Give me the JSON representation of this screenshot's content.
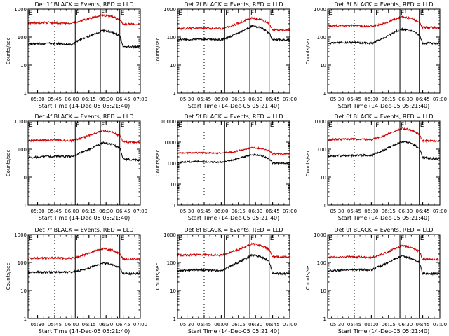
{
  "figure": {
    "x_axis_title": "Start Time (14-Dec-05 05:21:40)",
    "y_axis_title": "Counts/sec",
    "x_ticks": [
      "05:30",
      "05:45",
      "06:00",
      "06:15",
      "06:30",
      "06:45",
      "07:00"
    ],
    "y_ticks": [
      "1",
      "10",
      "100",
      "1000"
    ],
    "colors": {
      "events": "#000000",
      "lld": "#cc0000",
      "frame": "#000000"
    }
  },
  "chart_data": [
    {
      "type": "line",
      "title": "Det 1f BLACK = Events, RED = LLD",
      "y_scale": "log",
      "ylim": [
        1,
        1000
      ],
      "x_range": [
        "05:21:40",
        "07:00"
      ],
      "markers": [
        "F",
        "F",
        "E"
      ],
      "marker_times": [
        "06:03",
        "06:25",
        "06:42"
      ],
      "series": [
        {
          "color": "black",
          "x": [
            "05:22",
            "05:40",
            "06:00",
            "06:10",
            "06:20",
            "06:27",
            "06:35",
            "06:42",
            "06:45",
            "07:00"
          ],
          "y": [
            55,
            60,
            55,
            90,
            130,
            170,
            150,
            110,
            45,
            45
          ]
        },
        {
          "color": "red",
          "x": [
            "05:22",
            "05:40",
            "06:00",
            "06:10",
            "06:20",
            "06:27",
            "06:35",
            "06:42",
            "06:45",
            "07:00"
          ],
          "y": [
            320,
            330,
            310,
            400,
            520,
            600,
            550,
            420,
            290,
            290
          ]
        }
      ]
    },
    {
      "type": "line",
      "title": "Det 2f BLACK = Events, RED = LLD",
      "y_scale": "log",
      "ylim": [
        1,
        1000
      ],
      "x_range": [
        "05:21:40",
        "07:00"
      ],
      "markers": [
        "F",
        "F",
        "E"
      ],
      "marker_times": [
        "06:03",
        "06:25",
        "06:42"
      ],
      "series": [
        {
          "color": "black",
          "x": [
            "05:22",
            "05:40",
            "06:00",
            "06:10",
            "06:20",
            "06:27",
            "06:35",
            "06:42",
            "06:45",
            "07:00"
          ],
          "y": [
            80,
            85,
            80,
            110,
            180,
            250,
            220,
            140,
            80,
            80
          ]
        },
        {
          "color": "red",
          "x": [
            "05:22",
            "05:40",
            "06:00",
            "06:10",
            "06:20",
            "06:27",
            "06:35",
            "06:42",
            "06:45",
            "07:00"
          ],
          "y": [
            200,
            210,
            200,
            260,
            380,
            480,
            430,
            300,
            180,
            180
          ]
        }
      ]
    },
    {
      "type": "line",
      "title": "Det 3f BLACK = Events, RED = LLD",
      "y_scale": "log",
      "ylim": [
        1,
        1000
      ],
      "x_range": [
        "05:21:40",
        "07:00"
      ],
      "markers": [
        "F",
        "F",
        "E"
      ],
      "marker_times": [
        "06:03",
        "06:25",
        "06:42"
      ],
      "series": [
        {
          "color": "black",
          "x": [
            "05:22",
            "05:40",
            "06:00",
            "06:10",
            "06:20",
            "06:27",
            "06:35",
            "06:42",
            "06:45",
            "07:00"
          ],
          "y": [
            60,
            65,
            60,
            90,
            150,
            190,
            170,
            120,
            60,
            60
          ]
        },
        {
          "color": "red",
          "x": [
            "05:22",
            "05:40",
            "06:00",
            "06:10",
            "06:20",
            "06:27",
            "06:35",
            "06:42",
            "06:45",
            "07:00"
          ],
          "y": [
            250,
            260,
            240,
            300,
            430,
            520,
            470,
            340,
            220,
            220
          ]
        }
      ]
    },
    {
      "type": "line",
      "title": "Det 4f BLACK = Events, RED = LLD",
      "y_scale": "log",
      "ylim": [
        1,
        1000
      ],
      "x_range": [
        "05:21:40",
        "07:00"
      ],
      "markers": [
        "F",
        "F",
        "E"
      ],
      "marker_times": [
        "06:03",
        "06:25",
        "06:42"
      ],
      "series": [
        {
          "color": "black",
          "x": [
            "05:22",
            "05:40",
            "06:00",
            "06:10",
            "06:20",
            "06:27",
            "06:35",
            "06:42",
            "06:45",
            "07:00"
          ],
          "y": [
            50,
            55,
            55,
            80,
            120,
            170,
            150,
            110,
            45,
            40
          ]
        },
        {
          "color": "red",
          "x": [
            "05:22",
            "05:40",
            "06:00",
            "06:10",
            "06:20",
            "06:27",
            "06:35",
            "06:42",
            "06:45",
            "07:00"
          ],
          "y": [
            200,
            210,
            200,
            260,
            360,
            470,
            410,
            300,
            180,
            180
          ]
        }
      ]
    },
    {
      "type": "line",
      "title": "Det 5f BLACK = Events, RED = LLD",
      "y_scale": "log",
      "ylim": [
        1,
        10000
      ],
      "x_range": [
        "05:21:40",
        "07:00"
      ],
      "markers": [
        "F",
        "F",
        "E"
      ],
      "marker_times": [
        "06:03",
        "06:25",
        "06:42"
      ],
      "series": [
        {
          "color": "black",
          "x": [
            "05:22",
            "05:40",
            "06:00",
            "06:10",
            "06:20",
            "06:27",
            "06:35",
            "06:42",
            "06:45",
            "07:00"
          ],
          "y": [
            110,
            120,
            110,
            140,
            200,
            260,
            230,
            160,
            100,
            100
          ]
        },
        {
          "color": "red",
          "x": [
            "05:22",
            "05:40",
            "06:00",
            "06:10",
            "06:20",
            "06:27",
            "06:35",
            "06:42",
            "06:45",
            "07:00"
          ],
          "y": [
            300,
            310,
            300,
            340,
            450,
            550,
            500,
            380,
            280,
            280
          ]
        }
      ]
    },
    {
      "type": "line",
      "title": "Det 6f BLACK = Events, RED = LLD",
      "y_scale": "log",
      "ylim": [
        1,
        1000
      ],
      "x_range": [
        "05:21:40",
        "07:00"
      ],
      "markers": [
        "F",
        "F",
        "E"
      ],
      "marker_times": [
        "06:03",
        "06:25",
        "06:42"
      ],
      "series": [
        {
          "color": "black",
          "x": [
            "05:22",
            "05:40",
            "06:00",
            "06:10",
            "06:20",
            "06:27",
            "06:35",
            "06:42",
            "06:45",
            "07:00"
          ],
          "y": [
            55,
            60,
            60,
            90,
            140,
            190,
            160,
            110,
            50,
            45
          ]
        },
        {
          "color": "red",
          "x": [
            "05:22",
            "05:40",
            "06:00",
            "06:10",
            "06:20",
            "06:27",
            "06:35",
            "06:42",
            "06:45",
            "07:00"
          ],
          "y": [
            220,
            230,
            220,
            290,
            420,
            560,
            480,
            340,
            200,
            200
          ]
        }
      ]
    },
    {
      "type": "line",
      "title": "Det 7f BLACK = Events, RED = LLD",
      "y_scale": "log",
      "ylim": [
        1,
        1000
      ],
      "x_range": [
        "05:21:40",
        "07:00"
      ],
      "markers": [
        "F",
        "F",
        "E"
      ],
      "marker_times": [
        "06:03",
        "06:25",
        "06:42"
      ],
      "series": [
        {
          "color": "black",
          "x": [
            "05:22",
            "05:40",
            "06:00",
            "06:10",
            "06:20",
            "06:27",
            "06:35",
            "06:42",
            "06:45",
            "07:00"
          ],
          "y": [
            45,
            45,
            45,
            55,
            75,
            95,
            85,
            65,
            40,
            40
          ]
        },
        {
          "color": "red",
          "x": [
            "05:22",
            "05:40",
            "06:00",
            "06:10",
            "06:20",
            "06:27",
            "06:35",
            "06:42",
            "06:45",
            "07:00"
          ],
          "y": [
            140,
            145,
            140,
            180,
            250,
            310,
            280,
            200,
            130,
            130
          ]
        }
      ]
    },
    {
      "type": "line",
      "title": "Det 8f BLACK = Events, RED = LLD",
      "y_scale": "log",
      "ylim": [
        1,
        1000
      ],
      "x_range": [
        "05:21:40",
        "07:00"
      ],
      "markers": [
        "F",
        "F",
        "E"
      ],
      "marker_times": [
        "06:03",
        "06:25",
        "06:42"
      ],
      "series": [
        {
          "color": "black",
          "x": [
            "05:22",
            "05:40",
            "06:00",
            "06:10",
            "06:20",
            "06:27",
            "06:35",
            "06:42",
            "06:45",
            "07:00"
          ],
          "y": [
            50,
            55,
            50,
            80,
            130,
            180,
            160,
            110,
            40,
            40
          ]
        },
        {
          "color": "red",
          "x": [
            "05:22",
            "05:40",
            "06:00",
            "06:10",
            "06:20",
            "06:27",
            "06:35",
            "06:42",
            "06:45",
            "07:00"
          ],
          "y": [
            180,
            190,
            180,
            240,
            350,
            470,
            400,
            290,
            160,
            160
          ]
        }
      ]
    },
    {
      "type": "line",
      "title": "Det 9f BLACK = Events, RED = LLD",
      "y_scale": "log",
      "ylim": [
        1,
        1000
      ],
      "x_range": [
        "05:21:40",
        "07:00"
      ],
      "markers": [
        "F",
        "F",
        "E"
      ],
      "marker_times": [
        "06:03",
        "06:25",
        "06:42"
      ],
      "series": [
        {
          "color": "black",
          "x": [
            "05:22",
            "05:40",
            "06:00",
            "06:10",
            "06:20",
            "06:27",
            "06:35",
            "06:42",
            "06:45",
            "07:00"
          ],
          "y": [
            50,
            55,
            55,
            80,
            130,
            170,
            140,
            100,
            40,
            40
          ]
        },
        {
          "color": "red",
          "x": [
            "05:22",
            "05:40",
            "06:00",
            "06:10",
            "06:20",
            "06:27",
            "06:35",
            "06:42",
            "06:45",
            "07:00"
          ],
          "y": [
            150,
            160,
            150,
            200,
            300,
            400,
            340,
            250,
            130,
            130
          ]
        }
      ]
    }
  ]
}
